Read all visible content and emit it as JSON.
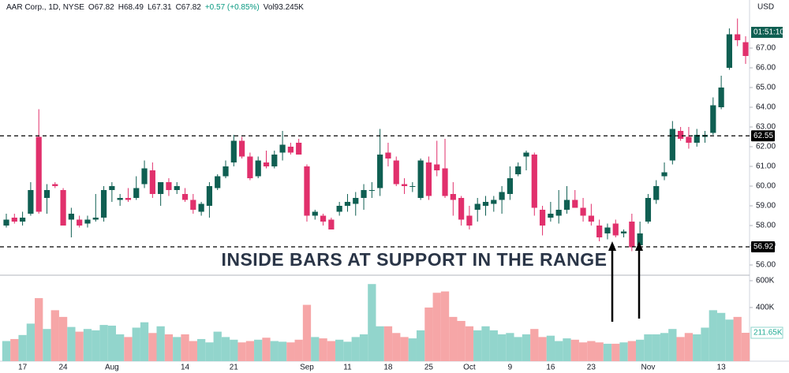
{
  "chart_data": {
    "type": "candlestick",
    "title": "AAR Corp., 1D, NYSE",
    "header_values": [
      "O67.82",
      "H68.49",
      "L67.31",
      "C67.82",
      "+0.57 (+0.85%)",
      "Vol93.245K"
    ],
    "currency": "USD",
    "countdown": "01:51:10",
    "annotation": "INSIDE BARS AT SUPPORT IN THE RANGE",
    "categories": [
      null,
      null,
      "17",
      null,
      null,
      null,
      null,
      "24",
      null,
      null,
      null,
      null,
      null,
      "Aug",
      null,
      null,
      null,
      null,
      null,
      null,
      null,
      null,
      "14",
      null,
      null,
      null,
      null,
      null,
      "21",
      null,
      null,
      null,
      null,
      null,
      null,
      null,
      null,
      "Sep",
      null,
      null,
      null,
      null,
      "11",
      null,
      null,
      null,
      null,
      "18",
      null,
      null,
      null,
      null,
      "25",
      null,
      null,
      null,
      null,
      "Oct",
      null,
      null,
      null,
      null,
      "9",
      null,
      null,
      null,
      null,
      "16",
      null,
      null,
      null,
      null,
      "23",
      null,
      null,
      null,
      null,
      null,
      null,
      "Nov",
      null,
      null,
      null,
      null,
      null,
      null,
      null,
      null,
      "13",
      null,
      null,
      null
    ],
    "open": [
      58.0,
      58.4,
      58.2,
      58.6,
      62.5,
      59.4,
      60.1,
      59.8,
      58.3,
      58.3,
      58.1,
      58.3,
      58.4,
      59.8,
      59.3,
      59.4,
      59.4,
      60.1,
      60.8,
      59.6,
      60.2,
      59.8,
      59.6,
      59.3,
      58.7,
      59.0,
      59.9,
      60.5,
      61.2,
      62.3,
      61.5,
      60.5,
      61.2,
      61.0,
      61.7,
      62.0,
      62.2,
      61.0,
      58.5,
      58.5,
      58.3,
      58.7,
      59.0,
      59.1,
      59.4,
      59.8,
      59.9,
      61.7,
      61.3,
      60.1,
      60.0,
      59.4,
      61.2,
      61.1,
      60.9,
      59.6,
      59.4,
      58.5,
      58.8,
      59.0,
      59.1,
      59.3,
      59.6,
      60.6,
      61.5,
      61.6,
      58.8,
      58.4,
      58.5,
      58.8,
      59.3,
      58.9,
      58.5,
      58.0,
      57.6,
      58.1,
      57.6,
      58.2,
      57.0,
      58.2,
      59.3,
      60.5,
      61.3,
      62.8,
      62.5,
      62.2,
      62.5,
      62.7,
      64.0,
      66.0,
      67.7,
      67.3
    ],
    "high": [
      58.6,
      58.6,
      58.7,
      60.2,
      63.9,
      60.1,
      60.2,
      59.9,
      58.9,
      58.5,
      58.5,
      59.6,
      60.0,
      60.2,
      59.6,
      59.9,
      60.5,
      61.3,
      61.2,
      60.2,
      60.4,
      60.2,
      59.9,
      59.6,
      59.2,
      60.2,
      60.6,
      61.3,
      62.6,
      62.5,
      61.7,
      61.5,
      61.8,
      61.8,
      62.8,
      62.2,
      62.4,
      61.1,
      58.8,
      58.6,
      58.4,
      59.2,
      59.6,
      59.7,
      60.1,
      60.2,
      62.9,
      62.2,
      61.5,
      60.4,
      60.2,
      61.4,
      61.5,
      62.3,
      62.4,
      60.2,
      59.5,
      59.0,
      59.4,
      59.5,
      59.5,
      60.0,
      61.0,
      61.2,
      61.8,
      61.7,
      59.0,
      59.2,
      59.8,
      60.0,
      59.8,
      59.4,
      59.1,
      58.3,
      58.1,
      58.3,
      57.8,
      58.6,
      58.2,
      59.6,
      60.3,
      61.2,
      63.3,
      63.0,
      63.0,
      62.9,
      62.8,
      64.5,
      65.6,
      68.0,
      68.5,
      67.6
    ],
    "low": [
      57.9,
      58.1,
      58.0,
      58.5,
      58.6,
      58.6,
      59.9,
      58.0,
      57.4,
      57.9,
      57.9,
      58.2,
      58.2,
      59.2,
      59.0,
      59.2,
      59.3,
      59.9,
      59.4,
      59.0,
      59.5,
      59.6,
      59.2,
      58.6,
      58.5,
      58.4,
      59.8,
      60.4,
      61.0,
      61.4,
      60.3,
      60.4,
      60.9,
      60.9,
      61.3,
      61.6,
      61.6,
      58.2,
      58.3,
      58.0,
      57.8,
      58.5,
      58.7,
      58.5,
      58.8,
      59.4,
      59.5,
      61.0,
      60.0,
      59.6,
      59.7,
      59.3,
      59.3,
      60.5,
      59.4,
      58.5,
      58.0,
      57.8,
      58.2,
      58.5,
      58.7,
      58.6,
      59.3,
      60.5,
      60.8,
      58.5,
      57.5,
      58.2,
      58.1,
      58.6,
      58.9,
      58.2,
      58.0,
      57.2,
      57.3,
      57.4,
      57.4,
      56.7,
      56.9,
      58.1,
      59.1,
      60.3,
      61.1,
      62.3,
      61.9,
      62.0,
      62.2,
      62.6,
      63.9,
      65.9,
      67.1,
      66.2
    ],
    "close": [
      58.3,
      58.2,
      58.4,
      59.8,
      58.7,
      59.8,
      60.0,
      58.0,
      58.6,
      58.0,
      58.3,
      58.4,
      59.8,
      60.0,
      59.4,
      59.3,
      59.9,
      60.9,
      59.6,
      60.2,
      59.8,
      60.0,
      59.3,
      58.8,
      59.1,
      60.0,
      60.5,
      61.0,
      62.3,
      61.5,
      60.4,
      61.3,
      61.0,
      61.6,
      62.1,
      61.7,
      61.6,
      58.5,
      58.7,
      58.2,
      57.8,
      59.0,
      59.2,
      59.4,
      59.8,
      59.8,
      61.6,
      61.4,
      60.1,
      60.0,
      60.0,
      61.3,
      59.5,
      60.8,
      59.5,
      59.3,
      58.3,
      58.0,
      59.1,
      59.2,
      59.3,
      59.7,
      60.4,
      61.0,
      61.7,
      58.9,
      58.0,
      58.6,
      58.8,
      59.3,
      58.9,
      58.5,
      58.2,
      57.4,
      57.9,
      57.5,
      57.7,
      56.9,
      57.6,
      59.4,
      60.0,
      60.7,
      62.9,
      62.4,
      62.2,
      62.6,
      62.6,
      64.1,
      65.0,
      67.7,
      67.4,
      66.6
    ],
    "volume": [
      150000,
      165000,
      195000,
      280000,
      470000,
      240000,
      380000,
      330000,
      255000,
      220000,
      240000,
      230000,
      270000,
      265000,
      200000,
      180000,
      250000,
      290000,
      210000,
      260000,
      200000,
      180000,
      200000,
      150000,
      165000,
      140000,
      220000,
      180000,
      160000,
      140000,
      150000,
      160000,
      175000,
      150000,
      145000,
      140000,
      160000,
      420000,
      180000,
      170000,
      150000,
      160000,
      145000,
      180000,
      200000,
      575000,
      260000,
      260000,
      210000,
      180000,
      170000,
      230000,
      400000,
      510000,
      520000,
      330000,
      300000,
      260000,
      230000,
      260000,
      230000,
      200000,
      210000,
      180000,
      200000,
      240000,
      180000,
      190000,
      150000,
      170000,
      160000,
      140000,
      150000,
      140000,
      130000,
      130000,
      140000,
      150000,
      160000,
      200000,
      200000,
      210000,
      240000,
      180000,
      210000,
      200000,
      250000,
      380000,
      360000,
      310000,
      330000,
      211650
    ],
    "volume_last_label": "211.65K",
    "up_color": "#0f5f52",
    "down_color": "#e1306c",
    "volume_up_color": "#92d5cc",
    "volume_down_color": "#f6a6a7",
    "ylim": [
      55.52,
      69.44
    ],
    "yticks": [
      {
        "value": 56,
        "label": "56.00"
      },
      {
        "value": 57,
        "label": "57.00"
      },
      {
        "value": 58,
        "label": "58.00"
      },
      {
        "value": 59,
        "label": "59.00"
      },
      {
        "value": 60,
        "label": "60.00"
      },
      {
        "value": 61,
        "label": "61.00"
      },
      {
        "value": 62,
        "label": "62.00"
      },
      {
        "value": 63,
        "label": "63.00"
      },
      {
        "value": 64,
        "label": "64.00"
      },
      {
        "value": 65,
        "label": "65.00"
      },
      {
        "value": 66,
        "label": "66.00"
      },
      {
        "value": 67,
        "label": "67.00"
      }
    ],
    "y2lim": [
      0,
      635000
    ],
    "y2ticks": [
      {
        "value": 400000,
        "label": "400K"
      },
      {
        "value": 600000,
        "label": "600K"
      }
    ],
    "hlines": [
      62.55,
      56.92
    ]
  }
}
